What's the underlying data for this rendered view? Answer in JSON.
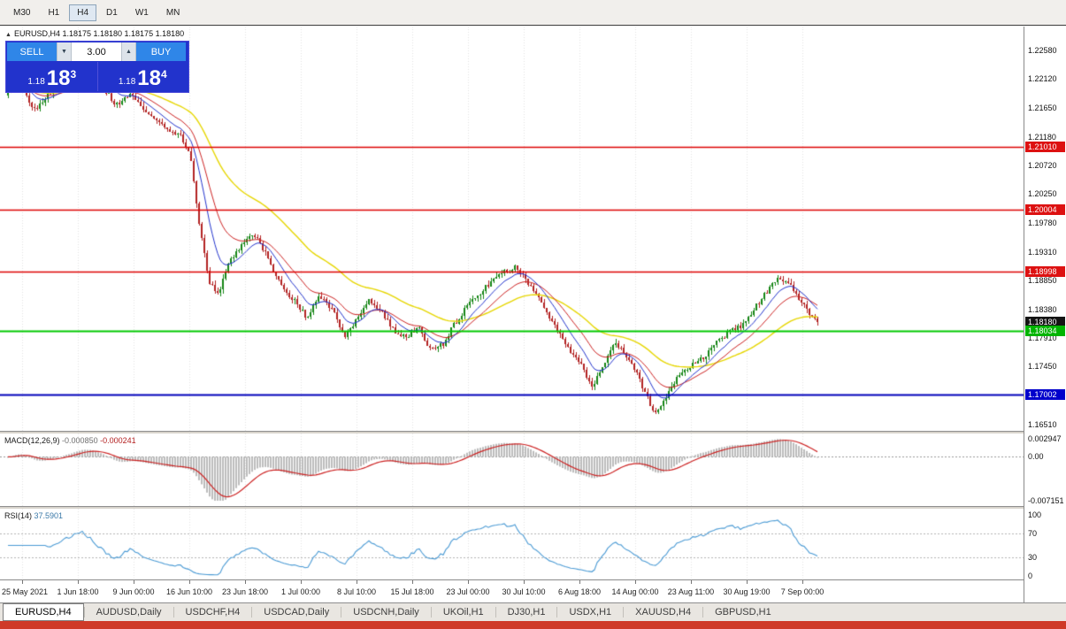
{
  "colors": {
    "up_candle": "#168616",
    "down_candle": "#b22222",
    "ma_fast_blue": "#2233cc",
    "ma_mid_red": "#cc2222",
    "ma_slow_yellow": "#e6d600",
    "macd_hist": "#bbbbbb",
    "macd_signal": "#cc2222",
    "rsi_line": "#4a9ad4",
    "grid": "#e3e3e3",
    "bottom_strip": "#cf3a28"
  },
  "toolbar": {
    "timeframes": [
      {
        "label": "M30",
        "active": false
      },
      {
        "label": "H1",
        "active": false
      },
      {
        "label": "H4",
        "active": true
      },
      {
        "label": "D1",
        "active": false
      },
      {
        "label": "W1",
        "active": false
      },
      {
        "label": "MN",
        "active": false
      }
    ]
  },
  "chart_header": {
    "collapse_icon": "▲",
    "symbol": "EURUSD,H4",
    "ohlc": "1.18175 1.18180 1.18175 1.18180"
  },
  "trade_widget": {
    "sell_label": "SELL",
    "buy_label": "BUY",
    "volume": "3.00",
    "dropdown_icon": "▼",
    "spinner_icon": "▲",
    "sell_price_prefix": "1.18",
    "sell_price_big": "18",
    "sell_price_sup": "3",
    "buy_price_prefix": "1.18",
    "buy_price_big": "18",
    "buy_price_sup": "4"
  },
  "price_axis": {
    "labels": [
      "1.22580",
      "1.22120",
      "1.21650",
      "1.21180",
      "1.20720",
      "1.20250",
      "1.19780",
      "1.19310",
      "1.18850",
      "1.18380",
      "1.17910",
      "1.17450",
      "1.16980",
      "1.16510"
    ]
  },
  "price_tags": [
    {
      "text": "1.21010",
      "price": 1.2101,
      "color": "#dd1111"
    },
    {
      "text": "1.20004",
      "price": 1.20004,
      "color": "#dd1111"
    },
    {
      "text": "1.18998",
      "price": 1.18998,
      "color": "#dd1111"
    },
    {
      "text": "1.18180",
      "price": 1.1818,
      "color": "#141414"
    },
    {
      "text": "1.18034",
      "price": 1.18034,
      "color": "#00b400"
    },
    {
      "text": "1.17002",
      "price": 1.17002,
      "color": "#0000cc"
    }
  ],
  "hlines": [
    {
      "price": 1.2101,
      "color": "#dd0000",
      "width": 1.4
    },
    {
      "price": 1.20004,
      "color": "#dd0000",
      "width": 1.4
    },
    {
      "price": 1.18998,
      "color": "#dd0000",
      "width": 1.4
    },
    {
      "price": 1.18034,
      "color": "#00c800",
      "width": 2
    },
    {
      "price": 1.17002,
      "color": "#0000bb",
      "width": 2
    }
  ],
  "macd_panel": {
    "name": "MACD(12,26,9)",
    "value_main": "-0.000850",
    "value_signal": "-0.000241",
    "axis_top": "0.002947",
    "axis_zero": "0.00",
    "axis_bottom": "-0.007151",
    "range_top": 0.002947,
    "range_bottom": -0.007151
  },
  "rsi_panel": {
    "name": "RSI(14)",
    "value": "37.5901",
    "axis": [
      {
        "v": 100,
        "label": "100"
      },
      {
        "v": 70,
        "label": "70"
      },
      {
        "v": 30,
        "label": "30"
      },
      {
        "v": 0,
        "label": "0"
      }
    ],
    "levels": [
      70,
      30
    ]
  },
  "time_axis": {
    "labels": [
      "25 May 2021",
      "1 Jun 18:00",
      "9 Jun 00:00",
      "16 Jun 10:00",
      "23 Jun 18:00",
      "1 Jul 00:00",
      "8 Jul 10:00",
      "15 Jul 18:00",
      "23 Jul 00:00",
      "30 Jul 10:00",
      "6 Aug 18:00",
      "14 Aug 00:00",
      "23 Aug 11:00",
      "30 Aug 19:00",
      "7 Sep 00:00"
    ]
  },
  "tabs": [
    {
      "label": "EURUSD,H4",
      "active": true
    },
    {
      "label": "AUDUSD,Daily",
      "active": false
    },
    {
      "label": "USDCHF,H4",
      "active": false
    },
    {
      "label": "USDCAD,Daily",
      "active": false
    },
    {
      "label": "USDCNH,Daily",
      "active": false
    },
    {
      "label": "UKOil,H1",
      "active": false
    },
    {
      "label": "DJ30,H1",
      "active": false
    },
    {
      "label": "USDX,H1",
      "active": false
    },
    {
      "label": "XAUUSD,H4",
      "active": false
    },
    {
      "label": "GBPUSD,H1",
      "active": false
    }
  ],
  "chart_data": {
    "type": "candlestick",
    "symbol": "EURUSD",
    "timeframe": "H4",
    "title": "EURUSD,H4",
    "price_scale": {
      "top_price": 1.2258,
      "bottom_price": 1.1651
    },
    "candles_count": 306,
    "last_close": 1.1818,
    "indicators": {
      "ema_fast": 10,
      "ema_mid": 20,
      "ema_slow": 50,
      "macd": [
        12,
        26,
        9
      ],
      "rsi": 14
    },
    "price_path": [
      [
        0.0,
        1.2185
      ],
      [
        0.015,
        1.222
      ],
      [
        0.035,
        1.216
      ],
      [
        0.055,
        1.219
      ],
      [
        0.075,
        1.221
      ],
      [
        0.095,
        1.224
      ],
      [
        0.115,
        1.221
      ],
      [
        0.135,
        1.217
      ],
      [
        0.155,
        1.2185
      ],
      [
        0.175,
        1.2155
      ],
      [
        0.195,
        1.2135
      ],
      [
        0.215,
        1.212
      ],
      [
        0.228,
        1.209
      ],
      [
        0.238,
        1.1985
      ],
      [
        0.25,
        1.1885
      ],
      [
        0.262,
        1.186
      ],
      [
        0.275,
        1.1915
      ],
      [
        0.29,
        1.194
      ],
      [
        0.305,
        1.1962
      ],
      [
        0.32,
        1.193
      ],
      [
        0.34,
        1.1875
      ],
      [
        0.358,
        1.185
      ],
      [
        0.372,
        1.1822
      ],
      [
        0.386,
        1.186
      ],
      [
        0.402,
        1.184
      ],
      [
        0.418,
        1.1792
      ],
      [
        0.432,
        1.1822
      ],
      [
        0.448,
        1.1852
      ],
      [
        0.462,
        1.1835
      ],
      [
        0.478,
        1.1803
      ],
      [
        0.495,
        1.179
      ],
      [
        0.508,
        1.1812
      ],
      [
        0.522,
        1.1773
      ],
      [
        0.538,
        1.178
      ],
      [
        0.552,
        1.1812
      ],
      [
        0.568,
        1.1842
      ],
      [
        0.59,
        1.1872
      ],
      [
        0.612,
        1.1897
      ],
      [
        0.628,
        1.1907
      ],
      [
        0.645,
        1.1878
      ],
      [
        0.662,
        1.1845
      ],
      [
        0.678,
        1.1806
      ],
      [
        0.695,
        1.1772
      ],
      [
        0.71,
        1.1746
      ],
      [
        0.722,
        1.1712
      ],
      [
        0.735,
        1.1742
      ],
      [
        0.75,
        1.1782
      ],
      [
        0.762,
        1.1768
      ],
      [
        0.775,
        1.1742
      ],
      [
        0.788,
        1.1702
      ],
      [
        0.8,
        1.1668
      ],
      [
        0.812,
        1.1692
      ],
      [
        0.825,
        1.1722
      ],
      [
        0.84,
        1.1742
      ],
      [
        0.858,
        1.1758
      ],
      [
        0.875,
        1.1782
      ],
      [
        0.892,
        1.1802
      ],
      [
        0.908,
        1.1813
      ],
      [
        0.922,
        1.1838
      ],
      [
        0.938,
        1.1868
      ],
      [
        0.952,
        1.1891
      ],
      [
        0.965,
        1.188
      ],
      [
        0.978,
        1.1853
      ],
      [
        0.99,
        1.1832
      ],
      [
        1.0,
        1.1818
      ]
    ]
  }
}
